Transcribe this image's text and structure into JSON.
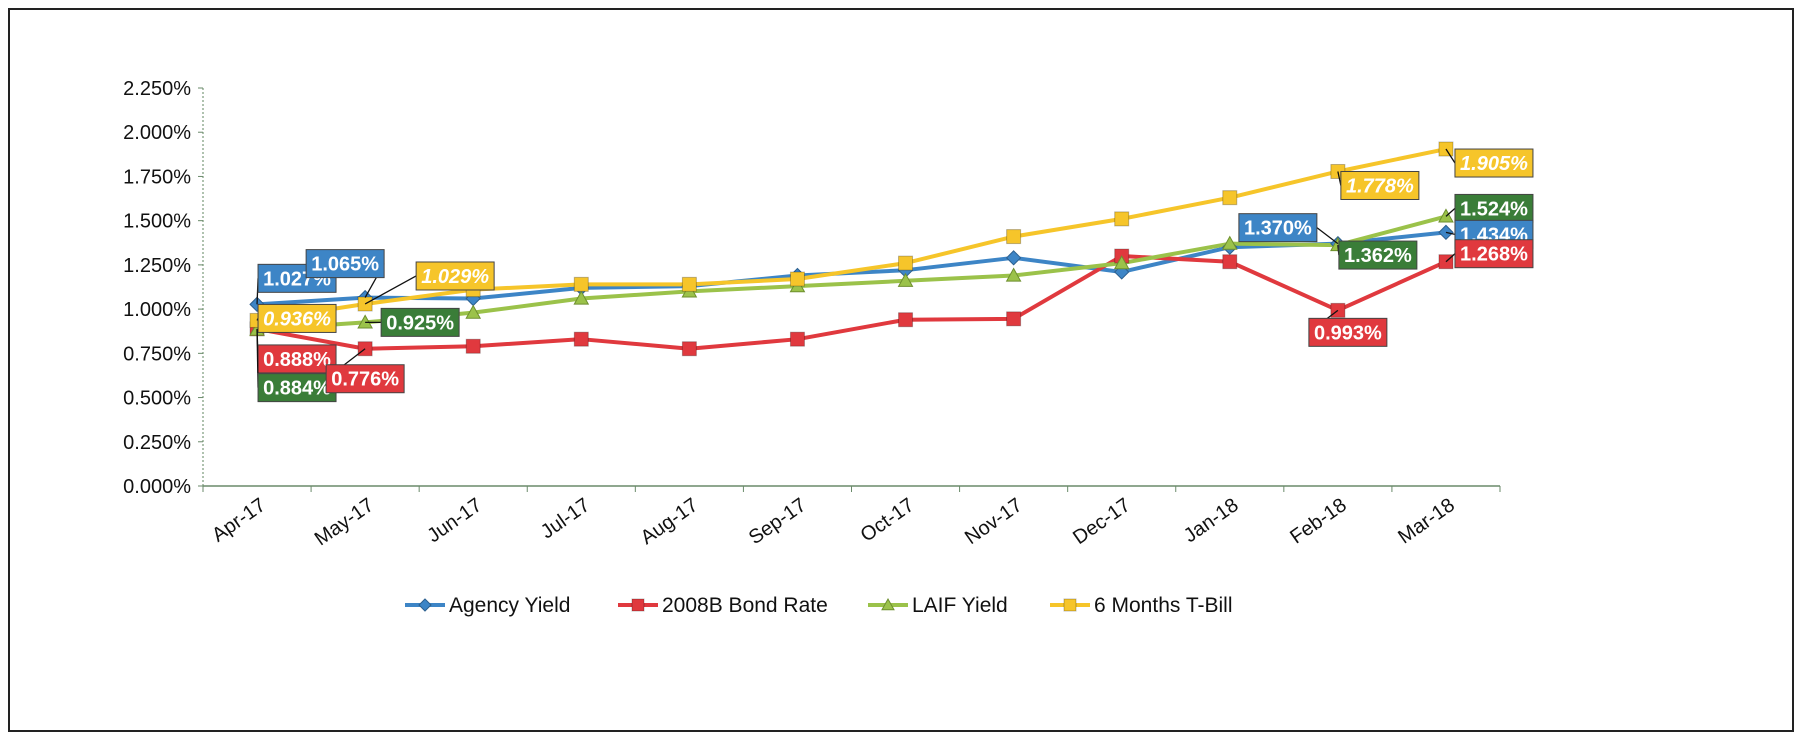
{
  "chart_data": {
    "type": "line",
    "categories": [
      "Apr-17",
      "May-17",
      "Jun-17",
      "Jul-17",
      "Aug-17",
      "Sep-17",
      "Oct-17",
      "Nov-17",
      "Dec-17",
      "Jan-18",
      "Feb-18",
      "Mar-18"
    ],
    "ylim": [
      0,
      2.25
    ],
    "y_ticks": [
      "0.000%",
      "0.250%",
      "0.500%",
      "0.750%",
      "1.000%",
      "1.250%",
      "1.500%",
      "1.750%",
      "2.000%",
      "2.250%"
    ],
    "legend_position": "bottom",
    "grid": false,
    "series": [
      {
        "name": "Agency Yield",
        "color": "#3d85c6",
        "marker": "diamond",
        "values": [
          1.027,
          1.065,
          1.06,
          1.12,
          1.13,
          1.19,
          1.22,
          1.29,
          1.21,
          1.35,
          1.37,
          1.434
        ]
      },
      {
        "name": "2008B Bond Rate",
        "color": "#e0393e",
        "marker": "square",
        "values": [
          0.888,
          0.776,
          0.79,
          0.83,
          0.776,
          0.83,
          0.94,
          0.945,
          1.3,
          1.268,
          0.993,
          1.268
        ]
      },
      {
        "name": "LAIF Yield",
        "color": "#9bc24a",
        "marker": "triangle",
        "values": [
          0.884,
          0.925,
          0.98,
          1.06,
          1.1,
          1.13,
          1.16,
          1.19,
          1.26,
          1.37,
          1.362,
          1.524
        ]
      },
      {
        "name": "6 Months T-Bill",
        "color": "#f6c52a",
        "marker": "square",
        "values": [
          0.936,
          1.029,
          1.11,
          1.14,
          1.14,
          1.17,
          1.26,
          1.41,
          1.51,
          1.63,
          1.778,
          1.905
        ]
      }
    ],
    "data_labels": [
      {
        "series": 0,
        "index": 0,
        "text": "1.027%",
        "bg": "#3d85c6",
        "fg": "#ffffff"
      },
      {
        "series": 3,
        "index": 0,
        "text": "0.936%",
        "bg": "#f6c52a",
        "fg": "#ffffff"
      },
      {
        "series": 1,
        "index": 0,
        "text": "0.888%",
        "bg": "#e0393e",
        "fg": "#ffffff"
      },
      {
        "series": 2,
        "index": 0,
        "text": "0.884%",
        "bg": "#3a7d38",
        "fg": "#ffffff"
      },
      {
        "series": 0,
        "index": 1,
        "text": "1.065%",
        "bg": "#3d85c6",
        "fg": "#ffffff"
      },
      {
        "series": 3,
        "index": 1,
        "text": "1.029%",
        "bg": "#f6c52a",
        "fg": "#ffffff"
      },
      {
        "series": 2,
        "index": 1,
        "text": "0.925%",
        "bg": "#3a7d38",
        "fg": "#ffffff"
      },
      {
        "series": 1,
        "index": 1,
        "text": "0.776%",
        "bg": "#e0393e",
        "fg": "#ffffff"
      },
      {
        "series": 0,
        "index": 10,
        "text": "1.370%",
        "bg": "#3d85c6",
        "fg": "#ffffff"
      },
      {
        "series": 3,
        "index": 10,
        "text": "1.778%",
        "bg": "#f6c52a",
        "fg": "#ffffff"
      },
      {
        "series": 2,
        "index": 10,
        "text": "1.362%",
        "bg": "#3a7d38",
        "fg": "#ffffff"
      },
      {
        "series": 1,
        "index": 10,
        "text": "0.993%",
        "bg": "#e0393e",
        "fg": "#ffffff"
      },
      {
        "series": 3,
        "index": 11,
        "text": "1.905%",
        "bg": "#f6c52a",
        "fg": "#ffffff"
      },
      {
        "series": 2,
        "index": 11,
        "text": "1.524%",
        "bg": "#3a7d38",
        "fg": "#ffffff"
      },
      {
        "series": 0,
        "index": 11,
        "text": "1.434%",
        "bg": "#3d85c6",
        "fg": "#ffffff"
      },
      {
        "series": 1,
        "index": 11,
        "text": "1.268%",
        "bg": "#e0393e",
        "fg": "#ffffff"
      }
    ]
  }
}
